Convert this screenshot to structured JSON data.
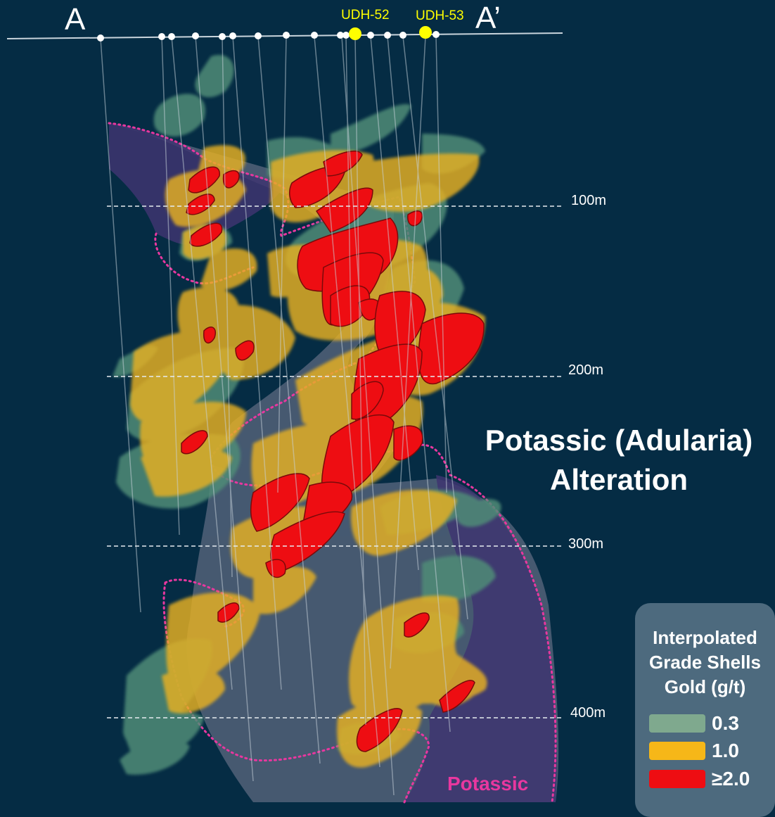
{
  "section": {
    "end_label_left": "A",
    "end_label_right": "A’",
    "drill_holes": [
      "UDH-52",
      "UDH-53"
    ],
    "depth_labels": [
      "100m",
      "200m",
      "300m",
      "400m"
    ],
    "alteration_title": "Potassic (Adularia)",
    "alteration_subtitle": "Alteration",
    "zone_label": "Potassic"
  },
  "legend": {
    "title_line1": "Interpolated",
    "title_line2": "Grade Shells",
    "title_line3": "Gold (g/t)",
    "items": [
      {
        "value": "0.3",
        "color": "#7fa98e"
      },
      {
        "value": "1.0",
        "color": "#f6b718"
      },
      {
        "value": "≥2.0",
        "color": "#ee0d12"
      }
    ]
  },
  "colors": {
    "background": "#052c44",
    "shell_low": "#4f8c77",
    "shell_mid": "#e8b124",
    "shell_high": "#ee0d12",
    "potassic_fill": "#3e3570",
    "potassic_outline": "#e8379f",
    "drill_highlight": "#ffff00"
  }
}
